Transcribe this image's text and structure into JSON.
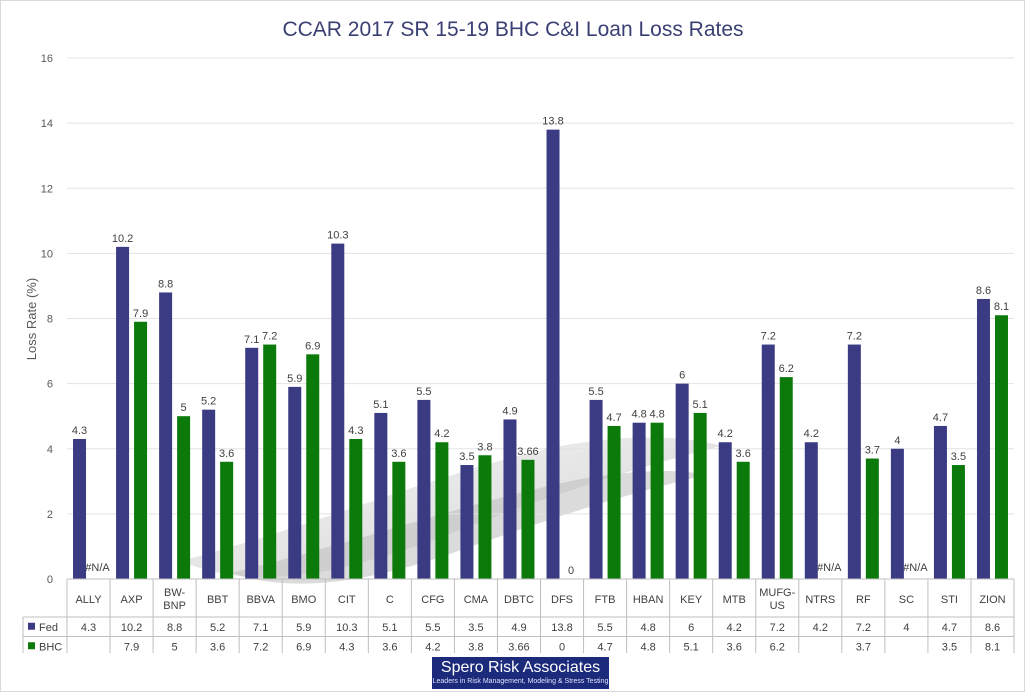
{
  "chart_data": {
    "type": "bar",
    "title": "CCAR 2017 SR 15-19 BHC C&I Loan Loss Rates",
    "ylabel": "Loss Rate (%)",
    "xlabel": "",
    "ylim": [
      0,
      16
    ],
    "yticks": [
      0,
      2,
      4,
      6,
      8,
      10,
      12,
      14,
      16
    ],
    "grid": true,
    "legend": "data-table",
    "categories": [
      "ALLY",
      "AXP",
      "BW-BNP",
      "BBT",
      "BBVA",
      "BMO",
      "CIT",
      "C",
      "CFG",
      "CMA",
      "DBTC",
      "DFS",
      "FTB",
      "HBAN",
      "KEY",
      "MTB",
      "MUFG-US",
      "NTRS",
      "RF",
      "SC",
      "STI",
      "ZION"
    ],
    "category_lines": [
      [
        "ALLY"
      ],
      [
        "AXP"
      ],
      [
        "BW-",
        "BNP"
      ],
      [
        "BBT"
      ],
      [
        "BBVA"
      ],
      [
        "BMO"
      ],
      [
        "CIT"
      ],
      [
        "C"
      ],
      [
        "CFG"
      ],
      [
        "CMA"
      ],
      [
        "DBTC"
      ],
      [
        "DFS"
      ],
      [
        "FTB"
      ],
      [
        "HBAN"
      ],
      [
        "KEY"
      ],
      [
        "MTB"
      ],
      [
        "MUFG-",
        "US"
      ],
      [
        "NTRS"
      ],
      [
        "RF"
      ],
      [
        "SC"
      ],
      [
        "STI"
      ],
      [
        "ZION"
      ]
    ],
    "series": [
      {
        "name": "Fed",
        "color": "#3b3b84",
        "values": [
          4.3,
          10.2,
          8.8,
          5.2,
          7.1,
          5.9,
          10.3,
          5.1,
          5.5,
          3.5,
          4.9,
          13.8,
          5.5,
          4.8,
          6,
          4.2,
          7.2,
          4.2,
          7.2,
          4,
          4.7,
          8.6
        ],
        "labels": [
          "4.3",
          "10.2",
          "8.8",
          "5.2",
          "7.1",
          "5.9",
          "10.3",
          "5.1",
          "5.5",
          "3.5",
          "4.9",
          "13.8",
          "5.5",
          "4.8",
          "6",
          "4.2",
          "7.2",
          "4.2",
          "7.2",
          "4",
          "4.7",
          "8.6"
        ]
      },
      {
        "name": "BHC",
        "color": "#0b7a0b",
        "values": [
          null,
          7.9,
          5,
          3.6,
          7.2,
          6.9,
          4.3,
          3.6,
          4.2,
          3.8,
          3.66,
          0,
          4.7,
          4.8,
          5.1,
          3.6,
          6.2,
          null,
          3.7,
          null,
          3.5,
          8.1
        ],
        "labels": [
          "#N/A",
          "7.9",
          "5",
          "3.6",
          "7.2",
          "6.9",
          "4.3",
          "3.6",
          "4.2",
          "3.8",
          "3.66",
          "0",
          "4.7",
          "4.8",
          "5.1",
          "3.6",
          "6.2",
          "#N/A",
          "3.7",
          "#N/A",
          "3.5",
          "8.1"
        ],
        "table_labels": [
          "",
          "7.9",
          "5",
          "3.6",
          "7.2",
          "6.9",
          "4.3",
          "3.6",
          "4.2",
          "3.8",
          "3.66",
          "0",
          "4.7",
          "4.8",
          "5.1",
          "3.6",
          "6.2",
          "",
          "3.7",
          "",
          "3.5",
          "8.1"
        ]
      }
    ]
  },
  "logo": {
    "name": "Spero Risk Associates",
    "tagline": "Leaders in Risk Management, Modeling & Stress Testing"
  }
}
